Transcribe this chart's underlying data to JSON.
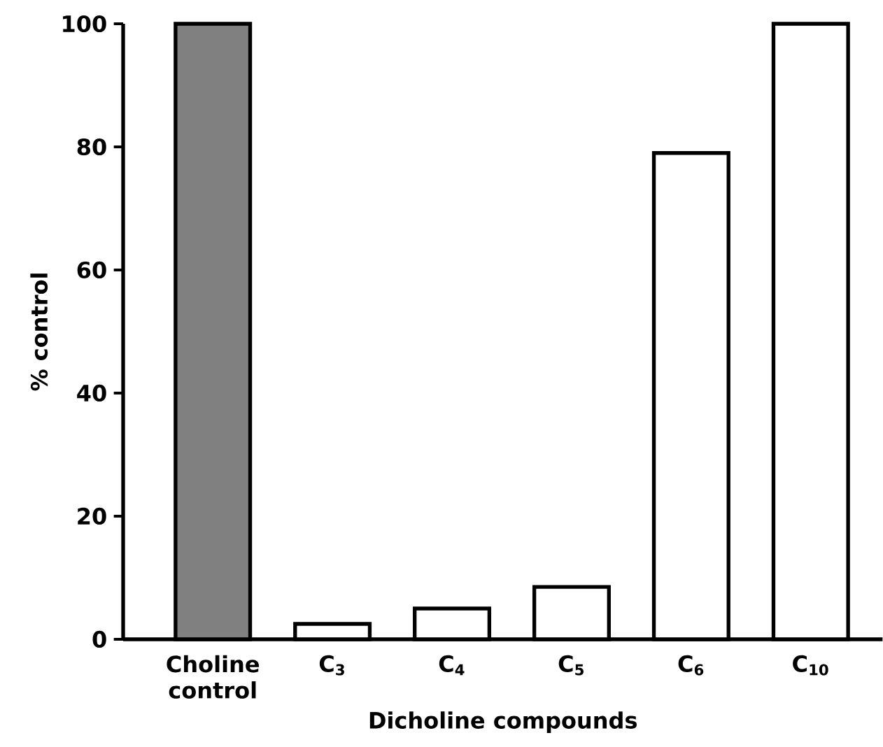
{
  "chart_data": {
    "type": "bar",
    "xlabel": "Dicholine compounds",
    "ylabel": "% control",
    "categories": [
      "Choline control",
      "C$_{3}$",
      "C$_{4}$",
      "C$_{5}$",
      "C$_{6}$",
      "C$_{10}$"
    ],
    "values": [
      100,
      2.5,
      5,
      8.5,
      79,
      100
    ],
    "colors": [
      "#808080",
      "#ffffff",
      "#ffffff",
      "#ffffff",
      "#ffffff",
      "#ffffff"
    ],
    "ylim": [
      0,
      100
    ],
    "yticks": [
      0,
      20,
      40,
      60,
      80,
      100
    ]
  }
}
